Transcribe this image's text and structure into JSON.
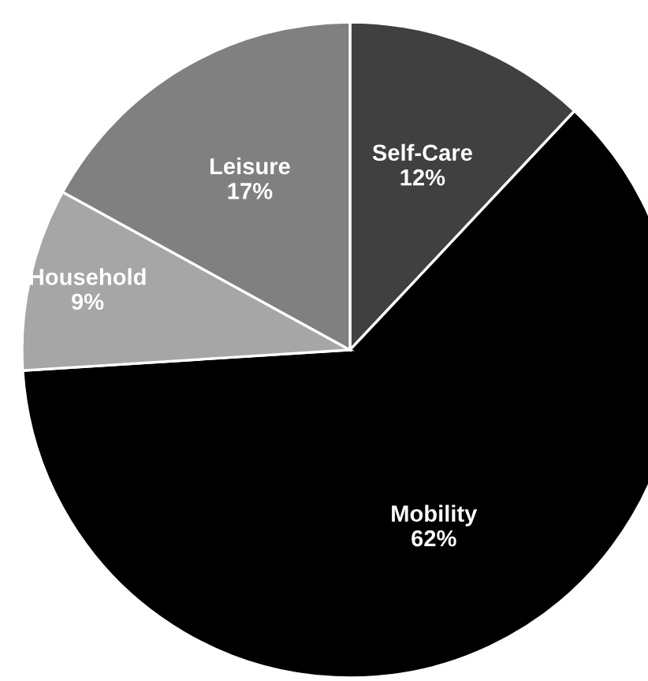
{
  "chart_data": {
    "type": "pie",
    "categories": [
      "Self-Care",
      "Mobility",
      "Household",
      "Leisure"
    ],
    "values": [
      12,
      62,
      9,
      17
    ],
    "value_labels": [
      "12%",
      "62%",
      "9%",
      "17%"
    ],
    "colors": [
      "#404040",
      "#000000",
      "#a6a6a6",
      "#808080"
    ]
  }
}
